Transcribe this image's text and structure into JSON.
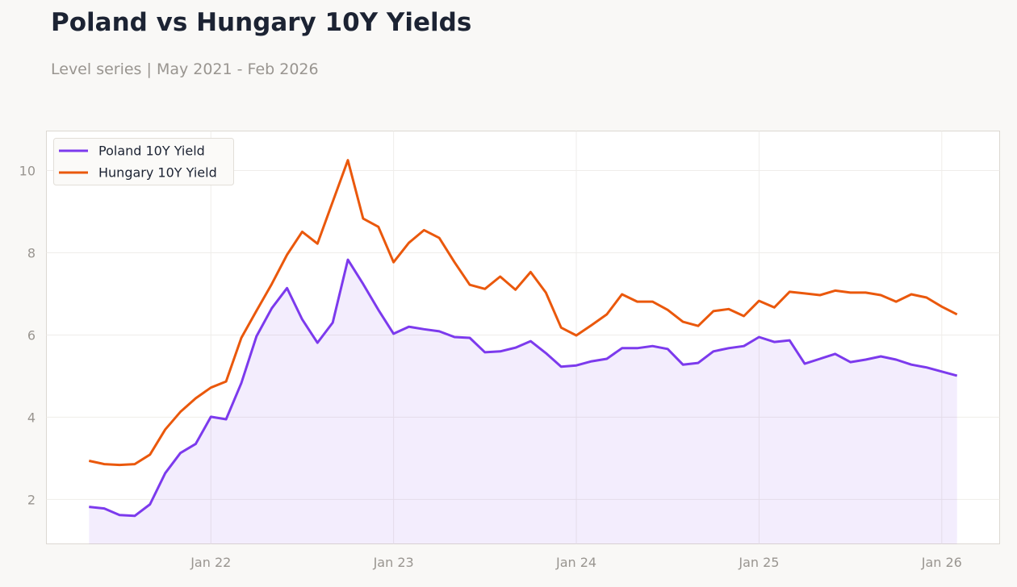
{
  "chart_data": {
    "type": "line",
    "title": "Poland vs Hungary 10Y Yields",
    "subtitle": "Level series | May 2021 - Feb 2026",
    "xlabel": "",
    "ylabel": "",
    "ylim": [
      0.92,
      10.96
    ],
    "yticks": [
      2,
      4,
      6,
      8,
      10
    ],
    "xticks": [
      {
        "date": "2022-01",
        "label": "Jan 22"
      },
      {
        "date": "2023-01",
        "label": "Jan 23"
      },
      {
        "date": "2024-01",
        "label": "Jan 24"
      },
      {
        "date": "2025-01",
        "label": "Jan 25"
      },
      {
        "date": "2026-01",
        "label": "Jan 26"
      }
    ],
    "grid": true,
    "legend_position": "top-left",
    "start_month": "2021-05",
    "frequency": "monthly",
    "series": [
      {
        "name": "Poland 10Y Yield",
        "color": "#7c3aed",
        "fill": true,
        "values": [
          1.82,
          1.78,
          1.62,
          1.6,
          1.88,
          2.64,
          3.13,
          3.35,
          4.01,
          3.95,
          4.83,
          5.97,
          6.65,
          7.14,
          6.38,
          5.81,
          6.3,
          7.83,
          7.24,
          6.61,
          6.03,
          6.2,
          6.14,
          6.09,
          5.95,
          5.93,
          5.58,
          5.6,
          5.69,
          5.85,
          5.56,
          5.23,
          5.26,
          5.36,
          5.42,
          5.68,
          5.68,
          5.73,
          5.66,
          5.28,
          5.32,
          5.6,
          5.68,
          5.73,
          5.95,
          5.83,
          5.87,
          5.3,
          5.42,
          5.54,
          5.34,
          5.4,
          5.48,
          5.4,
          5.28,
          5.21,
          5.11,
          5.01
        ]
      },
      {
        "name": "Hungary 10Y Yield",
        "color": "#ea580c",
        "fill": false,
        "values": [
          2.94,
          2.86,
          2.84,
          2.86,
          3.09,
          3.7,
          4.13,
          4.46,
          4.72,
          4.87,
          5.93,
          6.59,
          7.24,
          7.95,
          8.51,
          8.22,
          9.24,
          10.25,
          8.83,
          8.63,
          7.77,
          8.24,
          8.55,
          8.36,
          7.77,
          7.22,
          7.12,
          7.42,
          7.1,
          7.53,
          7.03,
          6.18,
          5.99,
          6.24,
          6.5,
          6.99,
          6.81,
          6.81,
          6.61,
          6.32,
          6.22,
          6.58,
          6.63,
          6.46,
          6.83,
          6.67,
          7.05,
          7.01,
          6.97,
          7.08,
          7.03,
          7.03,
          6.97,
          6.81,
          6.99,
          6.91,
          6.69,
          6.5
        ]
      }
    ]
  }
}
